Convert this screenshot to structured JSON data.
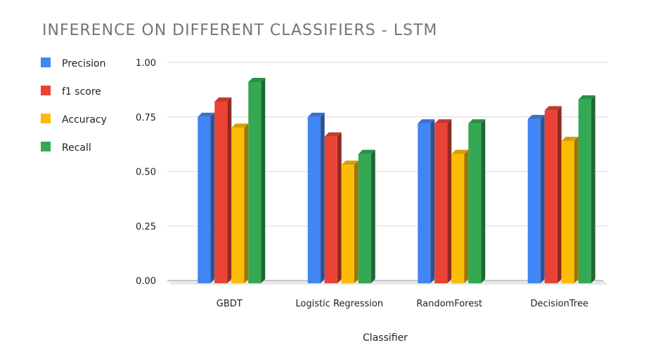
{
  "chart_data": {
    "type": "bar",
    "title": "INFERENCE ON DIFFERENT CLASSIFIERS - LSTM",
    "xlabel": "Classifier",
    "ylabel": "",
    "categories": [
      "GBDT",
      "Logistic Regression",
      "RandomForest",
      "DecisionTree"
    ],
    "series": [
      {
        "name": "Precision",
        "color": "#4285f4",
        "values": [
          0.75,
          0.75,
          0.72,
          0.74
        ]
      },
      {
        "name": "f1 score",
        "color": "#ea4335",
        "values": [
          0.82,
          0.66,
          0.72,
          0.78
        ]
      },
      {
        "name": "Accuracy",
        "color": "#fbbc04",
        "values": [
          0.7,
          0.53,
          0.58,
          0.64
        ]
      },
      {
        "name": "Recall",
        "color": "#34a853",
        "values": [
          0.91,
          0.58,
          0.72,
          0.83
        ]
      }
    ],
    "ylim": [
      0,
      1.0
    ],
    "yticks": [
      "0.00",
      "0.25",
      "0.50",
      "0.75",
      "1.00"
    ],
    "ytick_values": [
      0,
      0.25,
      0.5,
      0.75,
      1.0
    ],
    "grid": true,
    "legend_position": "left",
    "style": "3d-column"
  }
}
